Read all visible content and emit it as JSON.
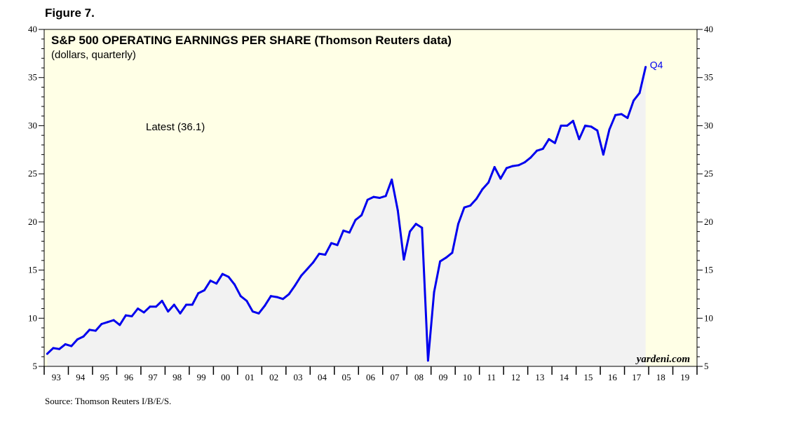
{
  "figure_label": "Figure 7.",
  "source": "Source: Thomson Reuters I/B/E/S.",
  "chart_data": {
    "type": "area",
    "title": "S&P 500 OPERATING EARNINGS PER SHARE (Thomson Reuters data)",
    "subtitle": "(dollars, quarterly)",
    "annotation": "Latest (36.1)",
    "end_label": "Q4",
    "watermark": "yardeni.com",
    "xlabel": "",
    "ylabel": "",
    "ylim": [
      5,
      40
    ],
    "yticks": [
      5,
      10,
      15,
      20,
      25,
      30,
      35,
      40
    ],
    "y_axes": "left and right",
    "grid": false,
    "xlim": [
      1993,
      2020
    ],
    "year_ticks": [
      "93",
      "94",
      "95",
      "96",
      "97",
      "98",
      "99",
      "00",
      "01",
      "02",
      "03",
      "04",
      "05",
      "06",
      "07",
      "08",
      "09",
      "10",
      "11",
      "12",
      "13",
      "14",
      "15",
      "16",
      "17",
      "18",
      "19"
    ],
    "colors": {
      "line": "#0000ee",
      "area": "#f2f2f2",
      "background": "#ffffe6"
    },
    "series": [
      {
        "x": [
          1993.125,
          1993.375,
          1993.625,
          1993.875,
          1994.125,
          1994.375,
          1994.625,
          1994.875,
          1995.125,
          1995.375,
          1995.625,
          1995.875,
          1996.125,
          1996.375,
          1996.625,
          1996.875,
          1997.125,
          1997.375,
          1997.625,
          1997.875,
          1998.125,
          1998.375,
          1998.625,
          1998.875,
          1999.125,
          1999.375,
          1999.625,
          1999.875,
          2000.125,
          2000.375,
          2000.625,
          2000.875,
          2001.125,
          2001.375,
          2001.625,
          2001.875,
          2002.125,
          2002.375,
          2002.625,
          2002.875,
          2003.125,
          2003.375,
          2003.625,
          2003.875,
          2004.125,
          2004.375,
          2004.625,
          2004.875,
          2005.125,
          2005.375,
          2005.625,
          2005.875,
          2006.125,
          2006.375,
          2006.625,
          2006.875,
          2007.125,
          2007.375,
          2007.625,
          2007.875,
          2008.125,
          2008.375,
          2008.625,
          2008.875,
          2009.125,
          2009.375,
          2009.625,
          2009.875,
          2010.125,
          2010.375,
          2010.625,
          2010.875,
          2011.125,
          2011.375,
          2011.625,
          2011.875,
          2012.125,
          2012.375,
          2012.625,
          2012.875,
          2013.125,
          2013.375,
          2013.625,
          2013.875,
          2014.125,
          2014.375,
          2014.625,
          2014.875,
          2015.125,
          2015.375,
          2015.625,
          2015.875,
          2016.125,
          2016.375,
          2016.625,
          2016.875,
          2017.125,
          2017.375,
          2017.625,
          2017.875
        ],
        "values": [
          6.3,
          6.9,
          6.8,
          7.3,
          7.1,
          7.8,
          8.1,
          8.8,
          8.7,
          9.4,
          9.6,
          9.8,
          9.3,
          10.3,
          10.2,
          11.0,
          10.6,
          11.2,
          11.2,
          11.8,
          10.7,
          11.4,
          10.5,
          11.4,
          11.4,
          12.6,
          12.9,
          13.9,
          13.6,
          14.6,
          14.3,
          13.5,
          12.3,
          11.8,
          10.7,
          10.5,
          11.3,
          12.3,
          12.2,
          12.0,
          12.5,
          13.4,
          14.4,
          15.1,
          15.8,
          16.7,
          16.6,
          17.8,
          17.6,
          19.1,
          18.9,
          20.2,
          20.7,
          22.3,
          22.6,
          22.5,
          22.7,
          24.4,
          21.2,
          16.1,
          19.0,
          19.8,
          19.4,
          5.6,
          12.7,
          15.9,
          16.3,
          16.8,
          19.8,
          21.5,
          21.7,
          22.4,
          23.4,
          24.1,
          25.7,
          24.5,
          25.6,
          25.8,
          25.9,
          26.2,
          26.7,
          27.4,
          27.6,
          28.6,
          28.2,
          30.0,
          30.0,
          30.5,
          28.6,
          30.0,
          29.9,
          29.5,
          27.0,
          29.6,
          31.1,
          31.2,
          30.8,
          32.6,
          33.4,
          36.1
        ]
      }
    ]
  }
}
